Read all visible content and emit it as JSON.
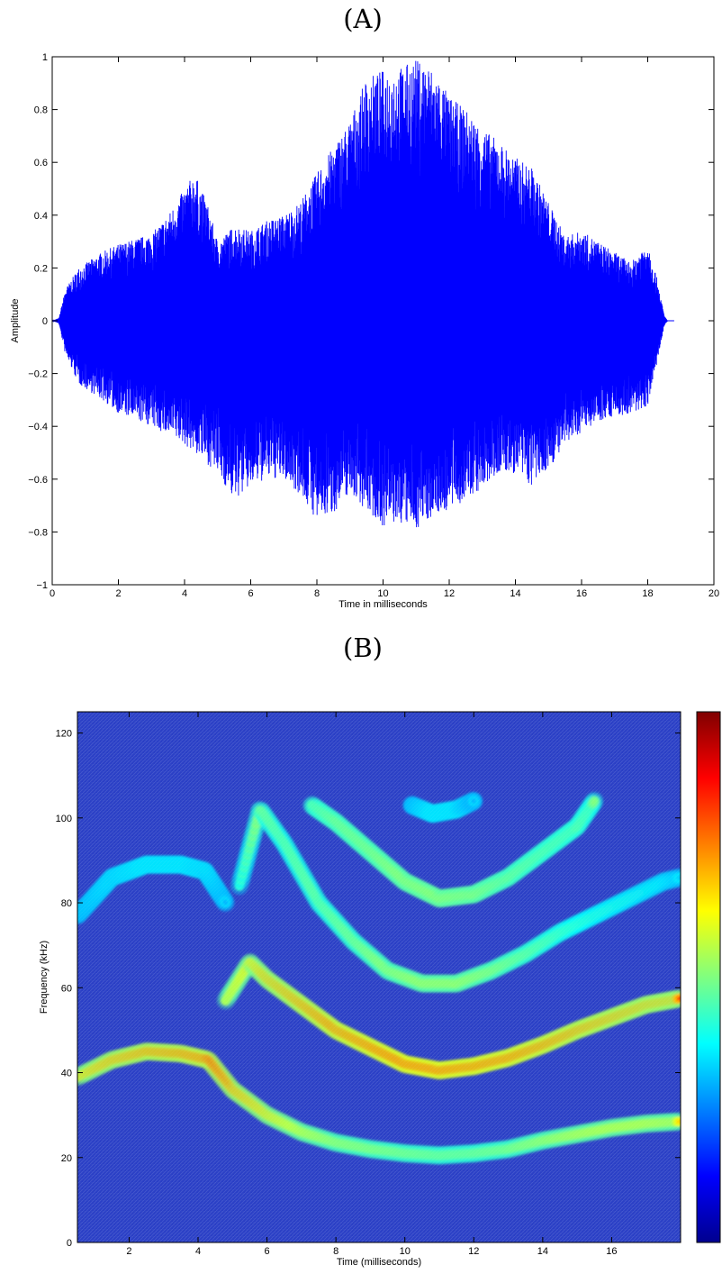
{
  "panels": {
    "a_label": "(A)",
    "b_label": "(B)"
  },
  "chart_data": [
    {
      "type": "line",
      "title": "",
      "xlabel": "Time in milliseconds",
      "ylabel": "Amplitude",
      "xlim": [
        0,
        20
      ],
      "ylim": [
        -1,
        1
      ],
      "xticks": [
        0,
        2,
        4,
        6,
        8,
        10,
        12,
        14,
        16,
        18,
        20
      ],
      "yticks": [
        -1,
        -0.8,
        -0.6,
        -0.4,
        -0.2,
        0,
        0.2,
        0.4,
        0.6,
        0.8,
        1
      ],
      "color": "#0000ff",
      "grid": false,
      "series": [
        {
          "envelope_upper": [
            [
              0,
              0
            ],
            [
              0.2,
              0.01
            ],
            [
              0.4,
              0.12
            ],
            [
              0.8,
              0.2
            ],
            [
              1.5,
              0.26
            ],
            [
              2.0,
              0.29
            ],
            [
              3.0,
              0.33
            ],
            [
              3.5,
              0.4
            ],
            [
              4.0,
              0.5
            ],
            [
              4.3,
              0.56
            ],
            [
              4.7,
              0.44
            ],
            [
              5.0,
              0.3
            ],
            [
              5.5,
              0.36
            ],
            [
              6.0,
              0.34
            ],
            [
              6.5,
              0.38
            ],
            [
              7.0,
              0.4
            ],
            [
              7.5,
              0.45
            ],
            [
              8.0,
              0.56
            ],
            [
              8.5,
              0.66
            ],
            [
              9.0,
              0.76
            ],
            [
              9.5,
              0.92
            ],
            [
              10.0,
              0.95
            ],
            [
              10.5,
              0.96
            ],
            [
              11.0,
              0.99
            ],
            [
              11.3,
              0.98
            ],
            [
              11.7,
              0.92
            ],
            [
              12.0,
              0.85
            ],
            [
              12.5,
              0.8
            ],
            [
              13.0,
              0.73
            ],
            [
              13.5,
              0.68
            ],
            [
              14.0,
              0.62
            ],
            [
              14.5,
              0.58
            ],
            [
              15.0,
              0.45
            ],
            [
              15.5,
              0.32
            ],
            [
              16.0,
              0.34
            ],
            [
              16.5,
              0.3
            ],
            [
              17.0,
              0.26
            ],
            [
              17.5,
              0.22
            ],
            [
              18.0,
              0.3
            ],
            [
              18.3,
              0.15
            ],
            [
              18.5,
              0.02
            ],
            [
              18.6,
              0
            ]
          ],
          "envelope_lower": [
            [
              0,
              0
            ],
            [
              0.2,
              -0.01
            ],
            [
              0.4,
              -0.13
            ],
            [
              0.8,
              -0.24
            ],
            [
              1.5,
              -0.3
            ],
            [
              2.0,
              -0.35
            ],
            [
              3.0,
              -0.4
            ],
            [
              4.0,
              -0.47
            ],
            [
              4.5,
              -0.52
            ],
            [
              5.0,
              -0.58
            ],
            [
              5.5,
              -0.68
            ],
            [
              6.0,
              -0.63
            ],
            [
              6.5,
              -0.6
            ],
            [
              7.0,
              -0.6
            ],
            [
              7.5,
              -0.66
            ],
            [
              8.0,
              -0.76
            ],
            [
              8.5,
              -0.73
            ],
            [
              9.0,
              -0.65
            ],
            [
              9.5,
              -0.72
            ],
            [
              10.0,
              -0.78
            ],
            [
              10.5,
              -0.77
            ],
            [
              11.0,
              -0.79
            ],
            [
              11.5,
              -0.74
            ],
            [
              12.0,
              -0.72
            ],
            [
              12.5,
              -0.68
            ],
            [
              13.0,
              -0.64
            ],
            [
              13.5,
              -0.58
            ],
            [
              14.0,
              -0.58
            ],
            [
              14.5,
              -0.63
            ],
            [
              15.0,
              -0.56
            ],
            [
              15.5,
              -0.48
            ],
            [
              16.0,
              -0.42
            ],
            [
              16.5,
              -0.38
            ],
            [
              17.0,
              -0.36
            ],
            [
              17.5,
              -0.36
            ],
            [
              18.0,
              -0.32
            ],
            [
              18.3,
              -0.15
            ],
            [
              18.5,
              -0.02
            ],
            [
              18.6,
              0
            ]
          ]
        }
      ]
    },
    {
      "type": "heatmap",
      "title": "",
      "xlabel": "Time (milliseconds)",
      "ylabel": "Frequency (kHz)",
      "xlim": [
        0.5,
        18
      ],
      "ylim": [
        0,
        125
      ],
      "xticks": [
        2,
        4,
        6,
        8,
        10,
        12,
        14,
        16
      ],
      "yticks": [
        0,
        20,
        40,
        60,
        80,
        100,
        120
      ],
      "colormap": "jet",
      "colorbar": true,
      "background_color": "#2a3fc6",
      "ridges": [
        {
          "points": [
            [
              0.5,
              39
            ],
            [
              1.5,
              43
            ],
            [
              2.5,
              45
            ],
            [
              3.5,
              44.5
            ],
            [
              4.3,
              43
            ],
            [
              5.0,
              36
            ],
            [
              6.0,
              30
            ],
            [
              7.0,
              26
            ],
            [
              8.0,
              23.5
            ],
            [
              9.0,
              22
            ],
            [
              10.0,
              21
            ],
            [
              11.0,
              20.5
            ],
            [
              12.0,
              21
            ],
            [
              13.0,
              22
            ],
            [
              14.0,
              24
            ],
            [
              15.0,
              25.5
            ],
            [
              16.0,
              27
            ],
            [
              17.0,
              28
            ],
            [
              18.0,
              28.5
            ]
          ],
          "intensity": [
            0.75,
            0.82,
            0.86,
            0.88,
            0.9,
            0.82,
            0.75,
            0.68,
            0.62,
            0.6,
            0.58,
            0.56,
            0.56,
            0.58,
            0.62,
            0.66,
            0.68,
            0.68,
            0.66
          ]
        },
        {
          "points": [
            [
              4.8,
              57
            ],
            [
              5.5,
              66
            ],
            [
              6.0,
              62
            ],
            [
              7.0,
              56
            ],
            [
              8.0,
              50
            ],
            [
              9.0,
              46
            ],
            [
              10.0,
              42
            ],
            [
              11.0,
              40.5
            ],
            [
              12.0,
              41.5
            ],
            [
              13.0,
              43.5
            ],
            [
              14.0,
              46.5
            ],
            [
              15.0,
              50
            ],
            [
              16.0,
              53
            ],
            [
              17.0,
              56
            ],
            [
              18.0,
              57.5
            ]
          ],
          "intensity": [
            0.65,
            0.72,
            0.8,
            0.86,
            0.92,
            0.95,
            0.98,
            0.98,
            0.96,
            0.95,
            0.92,
            0.88,
            0.85,
            0.82,
            0.8
          ]
        },
        {
          "points": [
            [
              5.2,
              84
            ],
            [
              5.8,
              102
            ],
            [
              6.5,
              94
            ],
            [
              7.5,
              80
            ],
            [
              8.5,
              71
            ],
            [
              9.5,
              64
            ],
            [
              10.5,
              61
            ],
            [
              11.5,
              61
            ],
            [
              12.5,
              64
            ],
            [
              13.5,
              68
            ],
            [
              14.5,
              73
            ],
            [
              15.5,
              77
            ],
            [
              16.5,
              81
            ],
            [
              17.5,
              85
            ],
            [
              18.0,
              86
            ]
          ],
          "intensity": [
            0.4,
            0.55,
            0.5,
            0.52,
            0.56,
            0.62,
            0.66,
            0.66,
            0.62,
            0.56,
            0.5,
            0.44,
            0.4,
            0.36,
            0.32
          ]
        },
        {
          "points": [
            [
              7.3,
              103
            ],
            [
              8.0,
              99
            ],
            [
              9.0,
              92
            ],
            [
              10.0,
              85
            ],
            [
              11.0,
              81
            ],
            [
              12.0,
              82
            ],
            [
              13.0,
              86
            ],
            [
              14.0,
              92
            ],
            [
              15.0,
              98
            ],
            [
              15.5,
              104
            ]
          ],
          "intensity": [
            0.55,
            0.6,
            0.62,
            0.66,
            0.68,
            0.66,
            0.6,
            0.56,
            0.54,
            0.5
          ]
        },
        {
          "points": [
            [
              0.5,
              77
            ],
            [
              1.5,
              86
            ],
            [
              2.5,
              89
            ],
            [
              3.5,
              89
            ],
            [
              4.2,
              87.5
            ],
            [
              4.8,
              80
            ]
          ],
          "intensity": [
            0.3,
            0.36,
            0.4,
            0.4,
            0.38,
            0.3
          ]
        },
        {
          "points": [
            [
              10.2,
              103
            ],
            [
              10.8,
              101
            ],
            [
              11.5,
              102
            ],
            [
              12.0,
              104
            ]
          ],
          "intensity": [
            0.3,
            0.4,
            0.4,
            0.3
          ]
        }
      ]
    }
  ]
}
